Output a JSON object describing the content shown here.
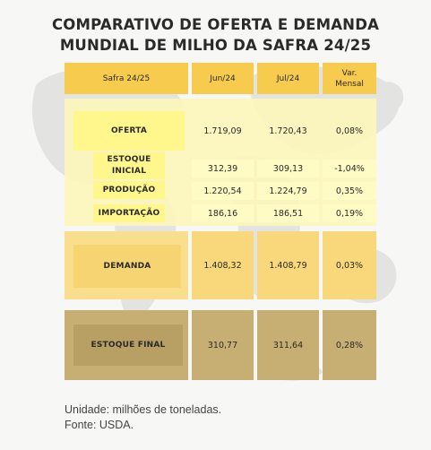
{
  "title_line1": "COMPARATIVO DE OFERTA E DEMANDA",
  "title_line2": "MUNDIAL DE MILHO DA SAFRA 24/25",
  "colors": {
    "header": "#f7cb4d",
    "supply_panel": "#fdf7b8",
    "supply_label": "#fff68c",
    "demand": "#f8d87a",
    "stock": "#c7ae72",
    "stock_label": "#b89f63"
  },
  "chart_data": {
    "type": "table",
    "columns": [
      "Safra 24/25",
      "Jun/24",
      "Jul/24",
      "Var. Mensal"
    ],
    "rows": [
      {
        "label": "OFERTA",
        "jun": "1.719,09",
        "jul": "1.720,43",
        "var": "0,08%"
      },
      {
        "label": "ESTOQUE INICIAL",
        "jun": "312,39",
        "jul": "309,13",
        "var": "-1,04%"
      },
      {
        "label": "PRODUÇÃO",
        "jun": "1.220,54",
        "jul": "1.224,79",
        "var": "0,35%"
      },
      {
        "label": "IMPORTAÇÃO",
        "jun": "186,16",
        "jul": "186,51",
        "var": "0,19%"
      },
      {
        "label": "DEMANDA",
        "jun": "1.408,32",
        "jul": "1.408,79",
        "var": "0,03%"
      },
      {
        "label": "ESTOQUE FINAL",
        "jun": "310,77",
        "jul": "311,64",
        "var": "0,28%"
      }
    ]
  },
  "footer": {
    "unit": "Unidade: milhões de toneladas.",
    "source": "Fonte: USDA."
  }
}
